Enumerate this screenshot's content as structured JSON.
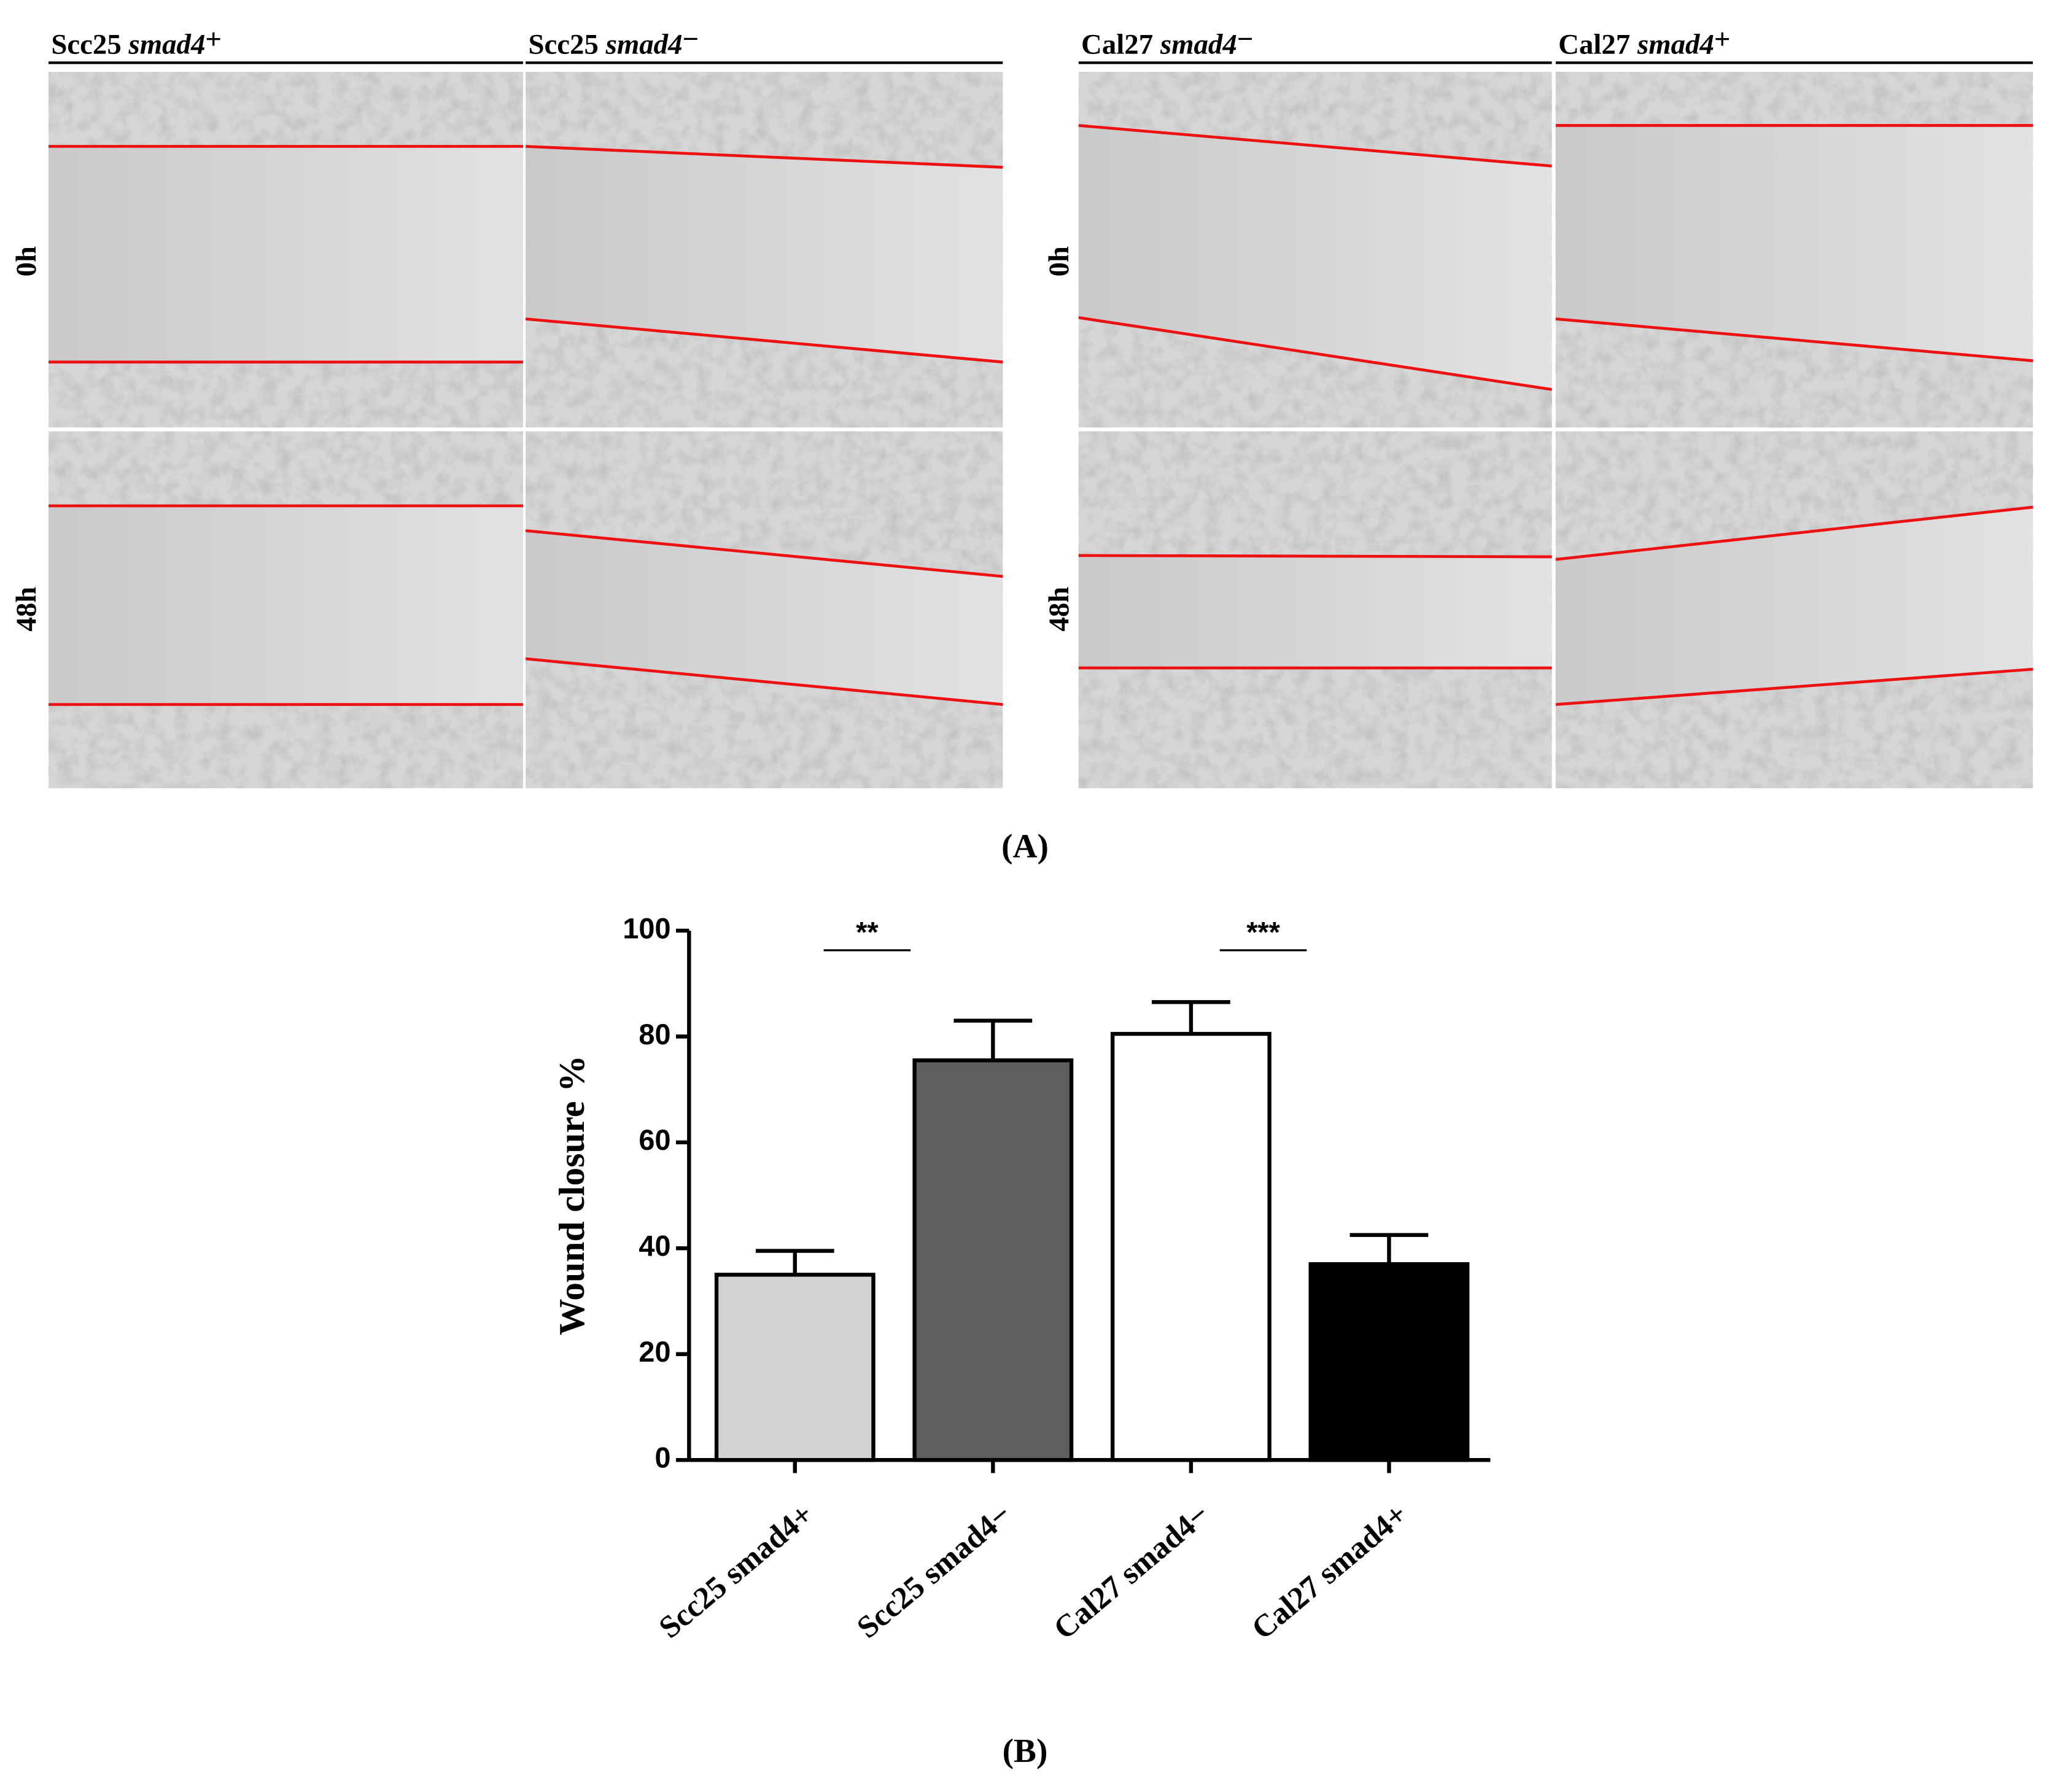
{
  "panel_a": {
    "columns": [
      {
        "line": "Scc25",
        "gene": "smad4",
        "sign": "+"
      },
      {
        "line": "Scc25",
        "gene": "smad4",
        "sign": "−"
      },
      {
        "line": "Cal27",
        "gene": "smad4",
        "sign": "−"
      },
      {
        "line": "Cal27",
        "gene": "smad4",
        "sign": "+"
      }
    ],
    "rows": [
      "0h",
      "48h"
    ],
    "label": "(A)"
  },
  "chart_data": {
    "type": "bar",
    "categories": [
      "Scc25 smad4+",
      "Scc25 smad4−",
      "Cal27 smad4−",
      "Cal27 smad4+"
    ],
    "values": [
      35,
      75.5,
      80.5,
      37
    ],
    "errors": [
      4.5,
      7.5,
      6,
      5.5
    ],
    "colors": [
      "#d3d3d3",
      "#5e5e5e",
      "#ffffff",
      "#000000"
    ],
    "ylabel": "Wound closure %",
    "ylim": [
      0,
      100
    ],
    "yticks": [
      0,
      20,
      40,
      60,
      80,
      100
    ],
    "annotations": [
      "**",
      "***"
    ],
    "label": "(B)"
  }
}
